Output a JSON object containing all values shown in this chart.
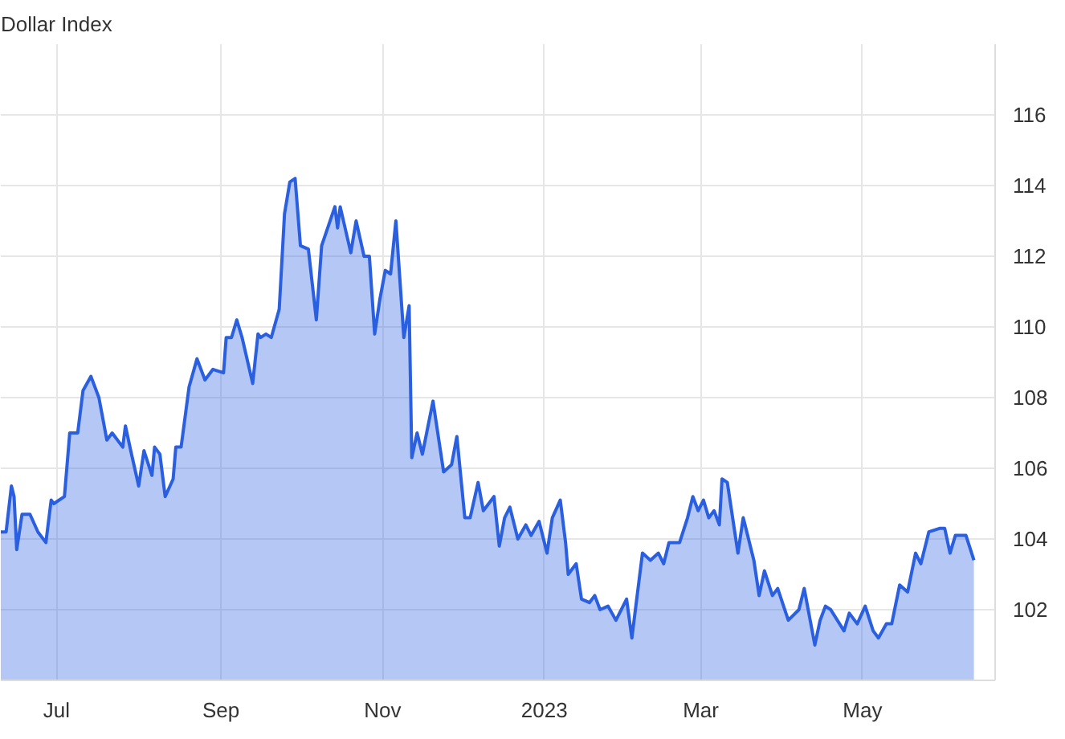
{
  "chart_data": {
    "type": "area",
    "title": "Dollar Index",
    "x": [
      "2022-06-10",
      "2022-06-12",
      "2022-06-14",
      "2022-06-15",
      "2022-06-16",
      "2022-06-18",
      "2022-06-21",
      "2022-06-24",
      "2022-06-27",
      "2022-06-29",
      "2022-06-30",
      "2022-07-04",
      "2022-07-06",
      "2022-07-09",
      "2022-07-11",
      "2022-07-14",
      "2022-07-17",
      "2022-07-20",
      "2022-07-22",
      "2022-07-26",
      "2022-07-27",
      "2022-07-29",
      "2022-08-01",
      "2022-08-03",
      "2022-08-06",
      "2022-08-07",
      "2022-08-09",
      "2022-08-11",
      "2022-08-14",
      "2022-08-15",
      "2022-08-17",
      "2022-08-20",
      "2022-08-23",
      "2022-08-25",
      "2022-08-26",
      "2022-08-29",
      "2022-09-02",
      "2022-09-03",
      "2022-09-05",
      "2022-09-07",
      "2022-09-09",
      "2022-09-13",
      "2022-09-15",
      "2022-09-16",
      "2022-09-18",
      "2022-09-20",
      "2022-09-23",
      "2022-09-25",
      "2022-09-27",
      "2022-09-29",
      "2022-10-01",
      "2022-10-04",
      "2022-10-07",
      "2022-10-09",
      "2022-10-14",
      "2022-10-15",
      "2022-10-16",
      "2022-10-20",
      "2022-10-22",
      "2022-10-25",
      "2022-10-27",
      "2022-10-29",
      "2022-10-31",
      "2022-11-02",
      "2022-11-04",
      "2022-11-06",
      "2022-11-09",
      "2022-11-11",
      "2022-11-12",
      "2022-11-14",
      "2022-11-16",
      "2022-11-20",
      "2022-11-24",
      "2022-11-27",
      "2022-11-29",
      "2022-12-02",
      "2022-12-04",
      "2022-12-07",
      "2022-12-09",
      "2022-12-13",
      "2022-12-15",
      "2022-12-17",
      "2022-12-19",
      "2022-12-22",
      "2022-12-25",
      "2022-12-27",
      "2022-12-30",
      "2023-01-02",
      "2023-01-04",
      "2023-01-07",
      "2023-01-09",
      "2023-01-10",
      "2023-01-13",
      "2023-01-15",
      "2023-01-18",
      "2023-01-20",
      "2023-01-22",
      "2023-01-25",
      "2023-01-28",
      "2023-02-01",
      "2023-02-03",
      "2023-02-07",
      "2023-02-10",
      "2023-02-13",
      "2023-02-15",
      "2023-02-17",
      "2023-02-21",
      "2023-02-24",
      "2023-02-26",
      "2023-02-28",
      "2023-03-02",
      "2023-03-04",
      "2023-03-06",
      "2023-03-08",
      "2023-03-09",
      "2023-03-11",
      "2023-03-15",
      "2023-03-17",
      "2023-03-21",
      "2023-03-23",
      "2023-03-25",
      "2023-03-28",
      "2023-03-30",
      "2023-04-03",
      "2023-04-07",
      "2023-04-09",
      "2023-04-13",
      "2023-04-15",
      "2023-04-17",
      "2023-04-19",
      "2023-04-24",
      "2023-04-26",
      "2023-04-29",
      "2023-05-02",
      "2023-05-05",
      "2023-05-07",
      "2023-05-10",
      "2023-05-12",
      "2023-05-15",
      "2023-05-18",
      "2023-05-21",
      "2023-05-23",
      "2023-05-26",
      "2023-05-30",
      "2023-06-01",
      "2023-06-03",
      "2023-06-05",
      "2023-06-09",
      "2023-06-12"
    ],
    "series": [
      {
        "color": "#2a5fe0",
        "values": [
          104.2,
          104.2,
          105.5,
          105.2,
          103.7,
          104.7,
          104.7,
          104.2,
          103.9,
          105.1,
          105.0,
          105.2,
          107.0,
          107.0,
          108.2,
          108.6,
          108.0,
          106.8,
          107.0,
          106.6,
          107.2,
          106.5,
          105.5,
          106.5,
          105.8,
          106.6,
          106.4,
          105.2,
          105.7,
          106.6,
          106.6,
          108.3,
          109.1,
          108.7,
          108.5,
          108.8,
          108.7,
          109.7,
          109.7,
          110.2,
          109.7,
          108.4,
          109.8,
          109.7,
          109.8,
          109.7,
          110.5,
          113.2,
          114.1,
          114.2,
          112.3,
          112.2,
          110.2,
          112.3,
          113.4,
          112.8,
          113.4,
          112.1,
          113.0,
          112.0,
          112.0,
          109.8,
          110.8,
          111.6,
          111.5,
          113.0,
          109.7,
          110.6,
          106.3,
          107.0,
          106.4,
          107.9,
          105.9,
          106.1,
          106.9,
          104.6,
          104.6,
          105.6,
          104.8,
          105.2,
          103.8,
          104.6,
          104.9,
          104.0,
          104.4,
          104.1,
          104.5,
          103.6,
          104.6,
          105.1,
          103.9,
          103.0,
          103.3,
          102.3,
          102.2,
          102.4,
          102.0,
          102.1,
          101.7,
          102.3,
          101.2,
          103.6,
          103.4,
          103.6,
          103.3,
          103.9,
          103.9,
          104.6,
          105.2,
          104.8,
          105.1,
          104.6,
          104.8,
          104.4,
          105.7,
          105.6,
          103.6,
          104.6,
          103.4,
          102.4,
          103.1,
          102.4,
          102.6,
          101.7,
          102.0,
          102.6,
          101.0,
          101.7,
          102.1,
          102.0,
          101.4,
          101.9,
          101.6,
          102.1,
          101.4,
          101.2,
          101.6,
          101.6,
          102.7,
          102.5,
          103.6,
          103.3,
          104.2,
          104.3,
          104.3,
          103.6,
          104.1,
          104.1,
          103.4
        ]
      }
    ],
    "xlim": [
      "2022-06-10",
      "2023-06-20"
    ],
    "xticks": [
      {
        "value": "2022-07-01",
        "label": "Jul"
      },
      {
        "value": "2022-09-01",
        "label": "Sep"
      },
      {
        "value": "2022-11-01",
        "label": "Nov"
      },
      {
        "value": "2023-01-01",
        "label": "2023"
      },
      {
        "value": "2023-03-01",
        "label": "Mar"
      },
      {
        "value": "2023-05-01",
        "label": "May"
      }
    ],
    "ylim": [
      100,
      118
    ],
    "yticks": [
      102,
      104,
      106,
      108,
      110,
      112,
      114,
      116
    ],
    "grid": true
  }
}
